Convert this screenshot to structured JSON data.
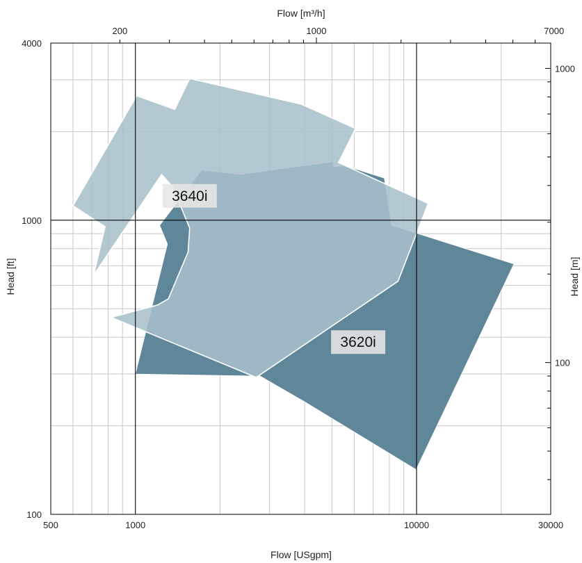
{
  "chart_data": {
    "type": "area",
    "title": "",
    "xlabel": "Flow [USgpm]",
    "x2label": "Flow [m³/h]",
    "ylabel": "Head [ft]",
    "y2label": "Head [m]",
    "x_scale": "log",
    "y_scale": "log",
    "xlim": [
      500,
      30000
    ],
    "ylim": [
      100,
      4000
    ],
    "x_ticks": [
      500,
      1000,
      10000,
      30000
    ],
    "x_tick_labels": [
      "500",
      "1000",
      "10000",
      "30000"
    ],
    "y_ticks": [
      100,
      1000,
      4000
    ],
    "y_tick_labels": [
      "100",
      "1000",
      "4000"
    ],
    "x2_ticks": [
      200,
      1000,
      7000
    ],
    "x2_tick_labels": [
      "200",
      "1000",
      "7000"
    ],
    "y2_ticks": [
      100,
      1000
    ],
    "y2_tick_labels": [
      "100",
      "1000"
    ],
    "grid": true,
    "legend": "none",
    "colors": {
      "3620i": "#5f8799",
      "3640i": "#a9c0cb",
      "major_grid": "#000000",
      "minor_grid": "#c8c8c8"
    },
    "series": [
      {
        "name": "3620i",
        "points": [
          [
            1000,
            300
          ],
          [
            2780,
            295
          ],
          [
            3980,
            242
          ],
          [
            9960,
            142
          ],
          [
            22200,
            710
          ],
          [
            8150,
            960
          ],
          [
            7680,
            1390
          ],
          [
            5600,
            1530
          ],
          [
            5050,
            1520
          ],
          [
            5060,
            1580
          ],
          [
            2350,
            1430
          ],
          [
            1720,
            1480
          ],
          [
            1220,
            960
          ],
          [
            1300,
            830
          ],
          [
            1000,
            300
          ]
        ]
      },
      {
        "name": "3640i",
        "points": [
          [
            600,
            1120
          ],
          [
            1010,
            2650
          ],
          [
            1380,
            2380
          ],
          [
            1560,
            3030
          ],
          [
            3890,
            2480
          ],
          [
            6070,
            2050
          ],
          [
            5280,
            1570
          ],
          [
            11000,
            1140
          ],
          [
            8590,
            620
          ],
          [
            2690,
            292
          ],
          [
            838,
            463
          ],
          [
            825,
            468
          ],
          [
            1200,
            515
          ],
          [
            1310,
            540
          ],
          [
            1540,
            780
          ],
          [
            1560,
            940
          ],
          [
            1355,
            1300
          ],
          [
            1240,
            1430
          ],
          [
            710,
            650
          ],
          [
            780,
            950
          ],
          [
            600,
            1120
          ]
        ]
      }
    ],
    "annotations": [
      {
        "text": "3640i",
        "x": 1560,
        "y": 1210
      },
      {
        "text": "3620i",
        "x": 6200,
        "y": 385
      }
    ]
  }
}
